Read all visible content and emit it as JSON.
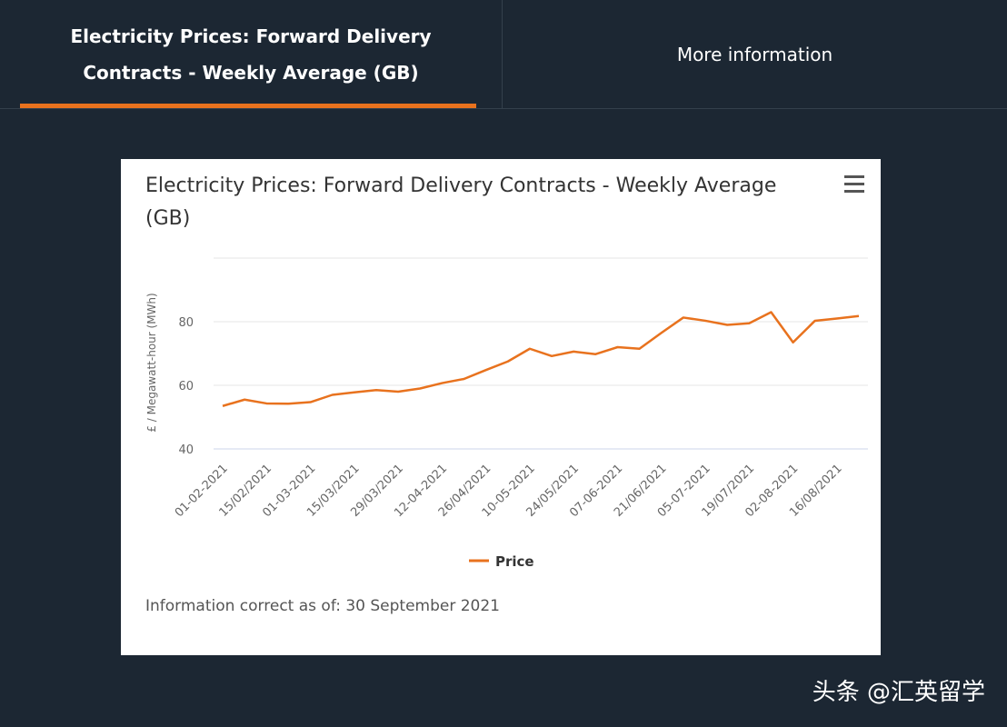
{
  "tabs": [
    {
      "label": "Electricity Prices: Forward Delivery Contracts - Weekly Average (GB)",
      "active": true
    },
    {
      "label": "More information",
      "active": false
    }
  ],
  "colors": {
    "accent": "#e8721e",
    "background": "#1c2733"
  },
  "menu_icon": "hamburger-menu-icon",
  "footer": "Information correct as of: 30 September 2021",
  "watermark": "头条 @汇英留学",
  "chart_data": {
    "type": "line",
    "title": "Electricity Prices: Forward Delivery Contracts - Weekly Average (GB)",
    "xlabel": "",
    "ylabel": "£ / Megawatt-hour (MWh)",
    "ylim": [
      40,
      100
    ],
    "yticks": [
      40,
      60,
      80
    ],
    "grid": true,
    "legend": "bottom-center",
    "tick_labels": [
      "01-02-2021",
      "15/02/2021",
      "01-03-2021",
      "15/03/2021",
      "29/03/2021",
      "12-04-2021",
      "26/04/2021",
      "10-05-2021",
      "24/05/2021",
      "07-06-2021",
      "21/06/2021",
      "05-07-2021",
      "19/07/2021",
      "02-08-2021",
      "16/08/2021"
    ],
    "series": [
      {
        "name": "Price",
        "color": "#e8721e",
        "values": [
          53.5,
          55.5,
          54.3,
          54.2,
          54.7,
          57,
          57.8,
          58.5,
          58,
          59,
          60.7,
          62,
          64.8,
          67.5,
          71.5,
          69.2,
          70.6,
          69.8,
          72,
          71.5,
          76.5,
          81.3,
          80.3,
          79,
          79.5,
          83,
          73.5,
          80.3,
          81,
          81.8
        ]
      }
    ]
  }
}
